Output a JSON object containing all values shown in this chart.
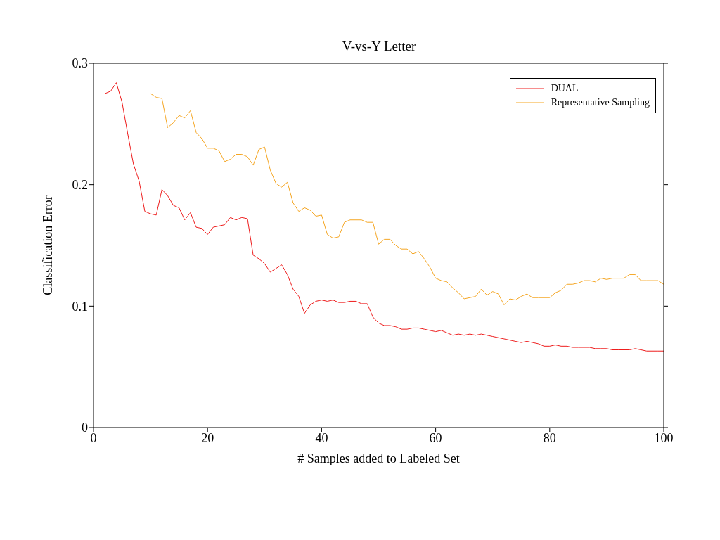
{
  "chart_data": {
    "type": "line",
    "title": "V-vs-Y Letter",
    "xlabel": "# Samples added to Labeled Set",
    "ylabel": "Classification Error",
    "xlim": [
      0,
      100
    ],
    "xticks": [
      0,
      20,
      40,
      60,
      80,
      100
    ],
    "ylim": [
      0,
      0.3
    ],
    "yticks": [
      0,
      0.1,
      0.2,
      0.3
    ],
    "legend": "top right",
    "marker": "none",
    "line_style": "solid",
    "series": [
      {
        "name": "DUAL",
        "color": "#ee1c1c",
        "x": [
          2,
          3,
          4,
          5,
          6,
          7,
          8,
          9,
          10,
          11,
          12,
          13,
          14,
          15,
          16,
          17,
          18,
          19,
          20,
          21,
          22,
          23,
          24,
          25,
          26,
          27,
          28,
          29,
          30,
          31,
          32,
          33,
          34,
          35,
          36,
          37,
          38,
          39,
          40,
          41,
          42,
          43,
          44,
          45,
          46,
          47,
          48,
          49,
          50,
          51,
          52,
          53,
          54,
          55,
          56,
          57,
          58,
          59,
          60,
          61,
          62,
          63,
          64,
          65,
          66,
          67,
          68,
          69,
          70,
          71,
          72,
          73,
          74,
          75,
          76,
          77,
          78,
          79,
          80,
          81,
          82,
          83,
          84,
          85,
          86,
          87,
          88,
          89,
          90,
          91,
          92,
          93,
          94,
          95,
          96,
          97,
          98,
          99,
          100
        ],
        "values": [
          0.275,
          0.277,
          0.284,
          0.268,
          0.242,
          0.217,
          0.203,
          0.178,
          0.176,
          0.175,
          0.196,
          0.191,
          0.183,
          0.181,
          0.171,
          0.177,
          0.165,
          0.164,
          0.159,
          0.165,
          0.166,
          0.167,
          0.173,
          0.171,
          0.173,
          0.172,
          0.142,
          0.139,
          0.135,
          0.128,
          0.131,
          0.134,
          0.126,
          0.114,
          0.108,
          0.094,
          0.101,
          0.104,
          0.105,
          0.104,
          0.105,
          0.103,
          0.103,
          0.104,
          0.104,
          0.102,
          0.102,
          0.091,
          0.086,
          0.084,
          0.084,
          0.083,
          0.081,
          0.081,
          0.082,
          0.082,
          0.081,
          0.08,
          0.079,
          0.08,
          0.078,
          0.076,
          0.077,
          0.076,
          0.077,
          0.076,
          0.077,
          0.076,
          0.075,
          0.074,
          0.073,
          0.072,
          0.071,
          0.07,
          0.071,
          0.07,
          0.069,
          0.067,
          0.067,
          0.068,
          0.067,
          0.067,
          0.066,
          0.066,
          0.066,
          0.066,
          0.065,
          0.065,
          0.065,
          0.064,
          0.064,
          0.064,
          0.064,
          0.065,
          0.064,
          0.063,
          0.063,
          0.063,
          0.063
        ]
      },
      {
        "name": "Representative Sampling",
        "color": "#f5a623",
        "x": [
          10,
          11,
          12,
          13,
          14,
          15,
          16,
          17,
          18,
          19,
          20,
          21,
          22,
          23,
          24,
          25,
          26,
          27,
          28,
          29,
          30,
          31,
          32,
          33,
          34,
          35,
          36,
          37,
          38,
          39,
          40,
          41,
          42,
          43,
          44,
          45,
          46,
          47,
          48,
          49,
          50,
          51,
          52,
          53,
          54,
          55,
          56,
          57,
          58,
          59,
          60,
          61,
          62,
          63,
          64,
          65,
          66,
          67,
          68,
          69,
          70,
          71,
          72,
          73,
          74,
          75,
          76,
          77,
          78,
          79,
          80,
          81,
          82,
          83,
          84,
          85,
          86,
          87,
          88,
          89,
          90,
          91,
          92,
          93,
          94,
          95,
          96,
          97,
          98,
          99,
          100
        ],
        "values": [
          0.275,
          0.272,
          0.271,
          0.247,
          0.251,
          0.257,
          0.255,
          0.261,
          0.243,
          0.238,
          0.23,
          0.23,
          0.228,
          0.219,
          0.221,
          0.225,
          0.225,
          0.223,
          0.216,
          0.229,
          0.231,
          0.212,
          0.201,
          0.198,
          0.202,
          0.185,
          0.178,
          0.181,
          0.179,
          0.174,
          0.175,
          0.159,
          0.156,
          0.157,
          0.169,
          0.171,
          0.171,
          0.171,
          0.169,
          0.169,
          0.151,
          0.155,
          0.155,
          0.15,
          0.147,
          0.147,
          0.143,
          0.145,
          0.139,
          0.132,
          0.123,
          0.121,
          0.12,
          0.115,
          0.111,
          0.106,
          0.107,
          0.108,
          0.114,
          0.109,
          0.112,
          0.11,
          0.101,
          0.106,
          0.105,
          0.108,
          0.11,
          0.107,
          0.107,
          0.107,
          0.107,
          0.111,
          0.113,
          0.118,
          0.118,
          0.119,
          0.121,
          0.121,
          0.12,
          0.123,
          0.122,
          0.123,
          0.123,
          0.123,
          0.126,
          0.126,
          0.121,
          0.121,
          0.121,
          0.121,
          0.118
        ]
      }
    ]
  }
}
